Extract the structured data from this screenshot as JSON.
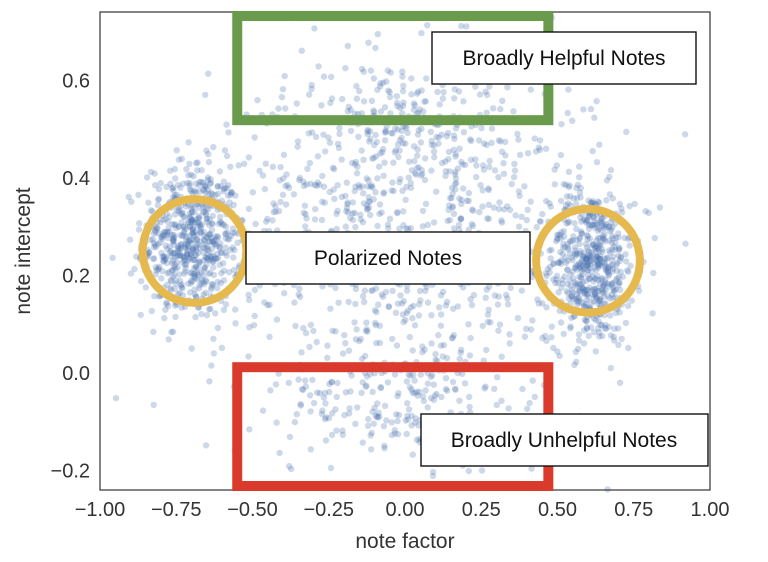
{
  "chart_data": {
    "type": "scatter",
    "xlabel": "note factor",
    "ylabel": "note intercept",
    "xlim": [
      -1.0,
      1.0
    ],
    "ylim": [
      -0.24,
      0.74
    ],
    "x_ticks": [
      "−1.00",
      "−0.75",
      "−0.50",
      "−0.25",
      "0.00",
      "0.25",
      "0.50",
      "0.75",
      "1.00"
    ],
    "x_tick_values": [
      -1.0,
      -0.75,
      -0.5,
      -0.25,
      0.0,
      0.25,
      0.5,
      0.75,
      1.0
    ],
    "y_ticks": [
      "−0.2",
      "0.0",
      "0.2",
      "0.4",
      "0.6"
    ],
    "y_tick_values": [
      -0.2,
      0.0,
      0.2,
      0.4,
      0.6
    ],
    "grid": false,
    "point_color": "#4a72b0",
    "point_opacity": 0.28,
    "clusters": [
      {
        "cx": -0.7,
        "cy": 0.27,
        "sx": 0.08,
        "sy": 0.08,
        "n": 600
      },
      {
        "cx": 0.61,
        "cy": 0.22,
        "sx": 0.07,
        "sy": 0.08,
        "n": 550
      },
      {
        "cx": 0.0,
        "cy": 0.28,
        "sx": 0.32,
        "sy": 0.18,
        "n": 800
      },
      {
        "cx": 0.0,
        "cy": 0.5,
        "sx": 0.22,
        "sy": 0.07,
        "n": 200
      },
      {
        "cx": 0.0,
        "cy": -0.05,
        "sx": 0.2,
        "sy": 0.07,
        "n": 200
      }
    ],
    "annotations": [
      {
        "id": "broadly-helpful",
        "kind": "rect",
        "color": "#6a9a4b",
        "x0": -0.55,
        "x1": 0.47,
        "y0": 0.51,
        "y1": 0.74
      },
      {
        "id": "broadly-unhelpful",
        "kind": "rect",
        "color": "#d93a2b",
        "x0": -0.55,
        "x1": 0.47,
        "y0": -0.24,
        "y1": 0.02
      },
      {
        "id": "polarized-left",
        "kind": "circle",
        "color": "#e5b94e",
        "cx": -0.69,
        "cy": 0.25,
        "r": 0.17
      },
      {
        "id": "polarized-right",
        "kind": "circle",
        "color": "#e5b94e",
        "cx": 0.6,
        "cy": 0.23,
        "r": 0.17
      }
    ],
    "labels": {
      "helpful": "Broadly Helpful Notes",
      "polarized": "Polarized Notes",
      "unhelpful": "Broadly Unhelpful Notes"
    }
  }
}
